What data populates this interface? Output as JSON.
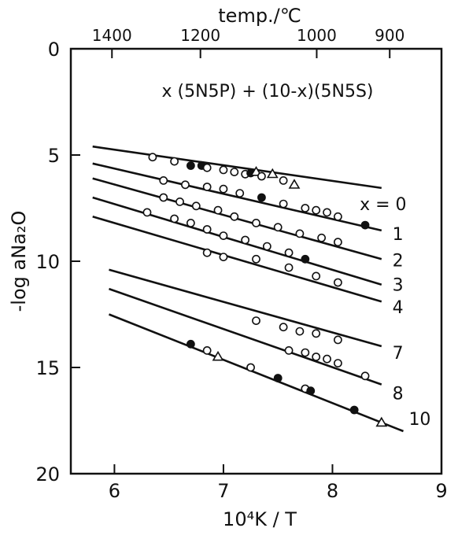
{
  "chart_data": {
    "type": "scatter",
    "title": "x (5N5P) + (10-x)(5N5S)",
    "xlabel": "10⁴K / T",
    "ylabel": "-log aNa₂O",
    "top_axis_label": "temp./℃",
    "xlim": [
      5.6,
      9.0
    ],
    "ylim": [
      20,
      0
    ],
    "x_ticks": [
      6,
      7,
      8,
      9
    ],
    "x_tick_labels": [
      "6",
      "7",
      "8",
      "9"
    ],
    "y_ticks": [
      0,
      5,
      10,
      15,
      20
    ],
    "y_tick_labels": [
      "0",
      "5",
      "10",
      "15",
      "20"
    ],
    "top_ticks_celsius": [
      1400,
      1200,
      1000,
      900
    ],
    "top_tick_labels": [
      "1400",
      "1200",
      "1000",
      "900"
    ],
    "series": [
      {
        "name": "x = 0",
        "line": [
          [
            5.8,
            4.6
          ],
          [
            8.45,
            6.55
          ]
        ],
        "points": [
          {
            "x": 6.35,
            "y": 5.1,
            "m": "o"
          },
          {
            "x": 6.55,
            "y": 5.3,
            "m": "o"
          },
          {
            "x": 6.7,
            "y": 5.5,
            "m": "f"
          },
          {
            "x": 6.8,
            "y": 5.5,
            "m": "f"
          },
          {
            "x": 6.85,
            "y": 5.6,
            "m": "o"
          },
          {
            "x": 7.0,
            "y": 5.7,
            "m": "o"
          },
          {
            "x": 7.1,
            "y": 5.8,
            "m": "o"
          },
          {
            "x": 7.2,
            "y": 5.9,
            "m": "o"
          },
          {
            "x": 7.25,
            "y": 5.85,
            "m": "f"
          },
          {
            "x": 7.3,
            "y": 5.8,
            "m": "t"
          },
          {
            "x": 7.35,
            "y": 6.0,
            "m": "o"
          },
          {
            "x": 7.45,
            "y": 5.9,
            "m": "t"
          },
          {
            "x": 7.55,
            "y": 6.2,
            "m": "o"
          },
          {
            "x": 7.65,
            "y": 6.4,
            "m": "t"
          }
        ]
      },
      {
        "name": "1",
        "line": [
          [
            5.8,
            5.4
          ],
          [
            8.45,
            8.55
          ]
        ],
        "points": [
          {
            "x": 6.45,
            "y": 6.2,
            "m": "o"
          },
          {
            "x": 6.65,
            "y": 6.4,
            "m": "o"
          },
          {
            "x": 6.85,
            "y": 6.5,
            "m": "o"
          },
          {
            "x": 7.0,
            "y": 6.6,
            "m": "o"
          },
          {
            "x": 7.15,
            "y": 6.8,
            "m": "o"
          },
          {
            "x": 7.35,
            "y": 7.0,
            "m": "f"
          },
          {
            "x": 7.55,
            "y": 7.3,
            "m": "o"
          },
          {
            "x": 7.75,
            "y": 7.5,
            "m": "o"
          },
          {
            "x": 7.85,
            "y": 7.6,
            "m": "o"
          },
          {
            "x": 7.95,
            "y": 7.7,
            "m": "o"
          },
          {
            "x": 8.05,
            "y": 7.9,
            "m": "o"
          },
          {
            "x": 8.3,
            "y": 8.3,
            "m": "f"
          }
        ]
      },
      {
        "name": "2",
        "line": [
          [
            5.8,
            6.1
          ],
          [
            8.45,
            9.9
          ]
        ],
        "points": [
          {
            "x": 6.45,
            "y": 7.0,
            "m": "o"
          },
          {
            "x": 6.6,
            "y": 7.2,
            "m": "o"
          },
          {
            "x": 6.75,
            "y": 7.4,
            "m": "o"
          },
          {
            "x": 6.95,
            "y": 7.6,
            "m": "o"
          },
          {
            "x": 7.1,
            "y": 7.9,
            "m": "o"
          },
          {
            "x": 7.3,
            "y": 8.2,
            "m": "o"
          },
          {
            "x": 7.5,
            "y": 8.4,
            "m": "o"
          },
          {
            "x": 7.7,
            "y": 8.7,
            "m": "o"
          },
          {
            "x": 7.9,
            "y": 8.9,
            "m": "o"
          },
          {
            "x": 8.05,
            "y": 9.1,
            "m": "o"
          }
        ]
      },
      {
        "name": "3",
        "line": [
          [
            5.8,
            7.0
          ],
          [
            8.45,
            11.1
          ]
        ],
        "points": [
          {
            "x": 6.3,
            "y": 7.7,
            "m": "o"
          },
          {
            "x": 6.55,
            "y": 8.0,
            "m": "o"
          },
          {
            "x": 6.7,
            "y": 8.2,
            "m": "o"
          },
          {
            "x": 6.85,
            "y": 8.5,
            "m": "o"
          },
          {
            "x": 7.0,
            "y": 8.8,
            "m": "o"
          },
          {
            "x": 7.2,
            "y": 9.0,
            "m": "o"
          },
          {
            "x": 7.4,
            "y": 9.3,
            "m": "o"
          },
          {
            "x": 7.6,
            "y": 9.6,
            "m": "o"
          },
          {
            "x": 7.75,
            "y": 9.9,
            "m": "f"
          }
        ]
      },
      {
        "name": "4",
        "line": [
          [
            5.8,
            7.9
          ],
          [
            8.45,
            11.9
          ]
        ],
        "points": [
          {
            "x": 6.85,
            "y": 9.6,
            "m": "o"
          },
          {
            "x": 7.0,
            "y": 9.8,
            "m": "o"
          },
          {
            "x": 7.3,
            "y": 9.9,
            "m": "o"
          },
          {
            "x": 7.6,
            "y": 10.3,
            "m": "o"
          },
          {
            "x": 7.85,
            "y": 10.7,
            "m": "o"
          },
          {
            "x": 8.05,
            "y": 11.0,
            "m": "o"
          }
        ]
      },
      {
        "name": "7",
        "line": [
          [
            5.95,
            10.4
          ],
          [
            8.45,
            14.0
          ]
        ],
        "points": [
          {
            "x": 7.3,
            "y": 12.8,
            "m": "o"
          },
          {
            "x": 7.55,
            "y": 13.1,
            "m": "o"
          },
          {
            "x": 7.7,
            "y": 13.3,
            "m": "o"
          },
          {
            "x": 7.85,
            "y": 13.4,
            "m": "o"
          },
          {
            "x": 8.05,
            "y": 13.7,
            "m": "o"
          }
        ]
      },
      {
        "name": "8",
        "line": [
          [
            5.95,
            11.3
          ],
          [
            8.45,
            15.8
          ]
        ],
        "points": [
          {
            "x": 7.6,
            "y": 14.2,
            "m": "o"
          },
          {
            "x": 7.75,
            "y": 14.3,
            "m": "o"
          },
          {
            "x": 7.85,
            "y": 14.5,
            "m": "o"
          },
          {
            "x": 7.95,
            "y": 14.6,
            "m": "o"
          },
          {
            "x": 8.05,
            "y": 14.8,
            "m": "o"
          },
          {
            "x": 8.3,
            "y": 15.4,
            "m": "o"
          }
        ]
      },
      {
        "name": "10",
        "line": [
          [
            5.95,
            12.5
          ],
          [
            8.65,
            18.0
          ]
        ],
        "points": [
          {
            "x": 6.7,
            "y": 13.9,
            "m": "f"
          },
          {
            "x": 6.85,
            "y": 14.2,
            "m": "o"
          },
          {
            "x": 6.95,
            "y": 14.5,
            "m": "t"
          },
          {
            "x": 7.25,
            "y": 15.0,
            "m": "o"
          },
          {
            "x": 7.5,
            "y": 15.5,
            "m": "f"
          },
          {
            "x": 7.75,
            "y": 16.0,
            "m": "o"
          },
          {
            "x": 7.8,
            "y": 16.1,
            "m": "f"
          },
          {
            "x": 8.2,
            "y": 17.0,
            "m": "f"
          },
          {
            "x": 8.45,
            "y": 17.6,
            "m": "t"
          }
        ]
      }
    ],
    "series_labels": [
      {
        "text": "x = 0",
        "x": 8.25,
        "y": 7.3
      },
      {
        "text": "1",
        "x": 8.55,
        "y": 8.7
      },
      {
        "text": "2",
        "x": 8.55,
        "y": 9.95
      },
      {
        "text": "3",
        "x": 8.55,
        "y": 11.1
      },
      {
        "text": "4",
        "x": 8.55,
        "y": 12.15
      },
      {
        "text": "7",
        "x": 8.55,
        "y": 14.3
      },
      {
        "text": "8",
        "x": 8.55,
        "y": 16.2
      },
      {
        "text": "10",
        "x": 8.7,
        "y": 17.4
      }
    ],
    "grid": false
  }
}
